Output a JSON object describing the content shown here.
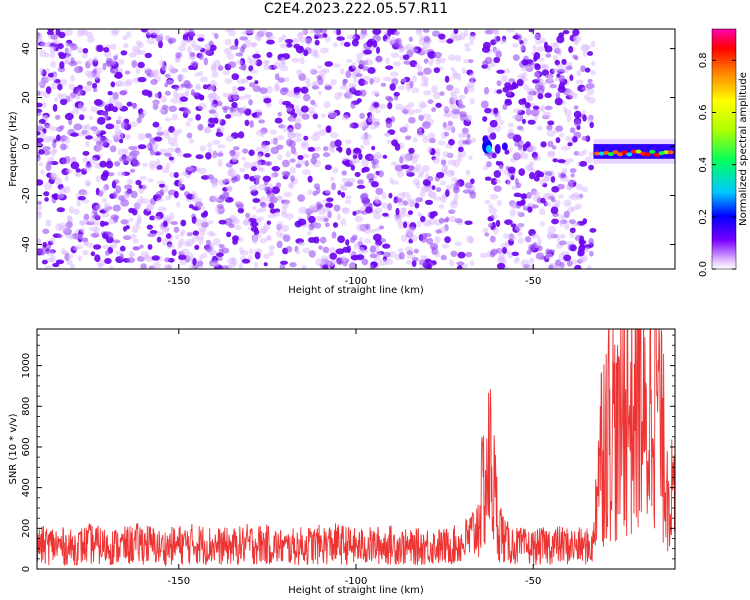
{
  "title": "C2E4.2023.222.05.57.R11",
  "chart_data": [
    {
      "type": "heatmap",
      "xlabel": "Height of straight line (km)",
      "ylabel": "Frequency (Hz)",
      "xlim": [
        -190,
        -10
      ],
      "ylim": [
        -50,
        48
      ],
      "xticks": [
        -150,
        -100,
        -50
      ],
      "yticks": [
        -40,
        -20,
        0,
        20,
        40
      ],
      "grid": false,
      "colorbar": {
        "label": "Normalized spectral amplitude",
        "range": [
          0,
          0.92
        ],
        "ticks": [
          0.0,
          0.2,
          0.4,
          0.6,
          0.8
        ],
        "colormap": "hsv"
      },
      "features": [
        {
          "description_x": -62,
          "frequency_peak": 0,
          "amplitude_peak": 0.45
        },
        {
          "x_range": [
            -33,
            -10
          ],
          "frequency": -2,
          "amplitude_peak": 0.9
        }
      ],
      "noise_region_x": [
        -190,
        -33
      ]
    },
    {
      "type": "line",
      "xlabel": "Height of straight line (km)",
      "ylabel": "SNR (10 * v/v)",
      "xlim": [
        -190,
        -10
      ],
      "ylim": [
        0,
        1180
      ],
      "xticks": [
        -150,
        -100,
        -50
      ],
      "yticks": [
        0,
        200,
        400,
        600,
        800,
        1000
      ],
      "grid": false,
      "series": [
        {
          "color": "#ee3333",
          "x": [
            -190,
            -185,
            -180,
            -175,
            -170,
            -165,
            -160,
            -155,
            -150,
            -145,
            -140,
            -135,
            -130,
            -125,
            -120,
            -115,
            -110,
            -105,
            -100,
            -95,
            -90,
            -85,
            -80,
            -75,
            -70,
            -66,
            -64,
            -62,
            -60,
            -58,
            -55,
            -50,
            -45,
            -40,
            -35,
            -33,
            -32,
            -30,
            -28,
            -26,
            -24,
            -22,
            -20,
            -18,
            -16,
            -14,
            -12,
            -10
          ],
          "y": [
            120,
            125,
            110,
            130,
            115,
            120,
            135,
            110,
            125,
            130,
            120,
            115,
            130,
            125,
            110,
            120,
            125,
            130,
            115,
            120,
            125,
            110,
            120,
            115,
            130,
            200,
            430,
            560,
            250,
            140,
            120,
            110,
            125,
            120,
            115,
            120,
            500,
            720,
            820,
            650,
            900,
            780,
            980,
            600,
            1180,
            700,
            480,
            300
          ]
        }
      ]
    }
  ],
  "colors": {
    "snr_line": "#ee3333",
    "noise_purple": "#6a00f0"
  }
}
